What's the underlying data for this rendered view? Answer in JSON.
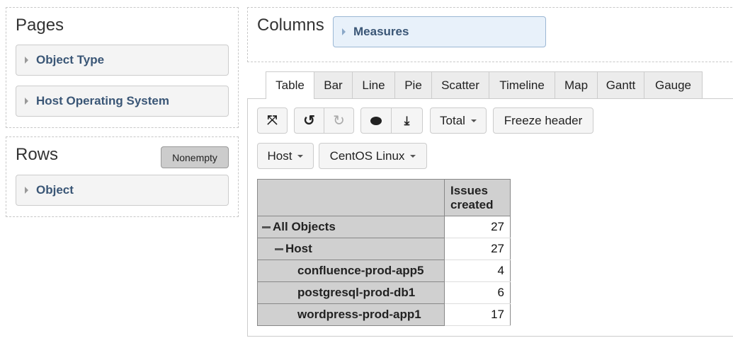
{
  "pages": {
    "title": "Pages",
    "items": [
      {
        "label": "Object Type"
      },
      {
        "label": "Host Operating System"
      }
    ]
  },
  "rows": {
    "title": "Rows",
    "nonempty_label": "Nonempty",
    "items": [
      {
        "label": "Object"
      }
    ]
  },
  "columns": {
    "title": "Columns",
    "items": [
      {
        "label": "Measures"
      }
    ]
  },
  "tabs": [
    {
      "label": "Table",
      "active": true
    },
    {
      "label": "Bar"
    },
    {
      "label": "Line"
    },
    {
      "label": "Pie"
    },
    {
      "label": "Scatter"
    },
    {
      "label": "Timeline"
    },
    {
      "label": "Map"
    },
    {
      "label": "Gantt"
    },
    {
      "label": "Gauge"
    }
  ],
  "toolbar": {
    "fullscreen_icon": "expand-icon",
    "undo_icon": "undo-icon",
    "redo_icon": "redo-icon",
    "comment_icon": "comment-icon",
    "download_icon": "download-icon",
    "total_label": "Total",
    "freeze_label": "Freeze header"
  },
  "filters": {
    "host_label": "Host",
    "os_label": "CentOS Linux"
  },
  "table": {
    "column_header": "Issues created",
    "rows": [
      {
        "label": "All Objects",
        "value": "27"
      },
      {
        "label": "Host",
        "value": "27"
      },
      {
        "label": "confluence-prod-app5",
        "value": "4"
      },
      {
        "label": "postgresql-prod-db1",
        "value": "6"
      },
      {
        "label": "wordpress-prod-app1",
        "value": "17"
      }
    ]
  }
}
